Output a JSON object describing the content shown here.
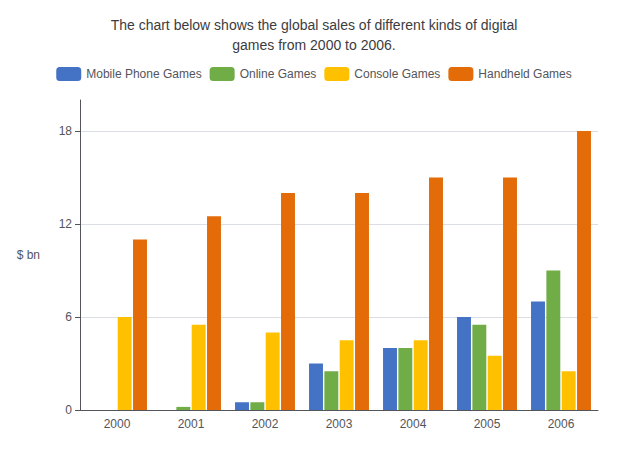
{
  "chart_data": {
    "type": "bar",
    "title": "The chart below shows the global sales of different kinds of digital\ngames from 2000 to 2006.",
    "y_label": "$ bn",
    "categories": [
      "2000",
      "2001",
      "2002",
      "2003",
      "2004",
      "2005",
      "2006"
    ],
    "series": [
      {
        "name": "Mobile Phone Games",
        "color": "#4472C4",
        "values": [
          0.0,
          0.0,
          0.5,
          3.0,
          4.0,
          6.0,
          7.0
        ]
      },
      {
        "name": "Online Games",
        "color": "#70AD47",
        "values": [
          0.0,
          0.2,
          0.5,
          2.5,
          4.0,
          5.5,
          9.0
        ]
      },
      {
        "name": "Console Games",
        "color": "#FFC000",
        "values": [
          6.0,
          5.5,
          5.0,
          4.5,
          4.5,
          3.5,
          2.5
        ]
      },
      {
        "name": "Handheld Games",
        "color": "#E36C09",
        "values": [
          11.0,
          12.5,
          14.0,
          14.0,
          15.0,
          15.0,
          18.0
        ]
      }
    ],
    "ylim": [
      0,
      20
    ],
    "yticks": [
      0,
      6,
      12,
      18
    ],
    "grid": true,
    "legend": "top"
  }
}
